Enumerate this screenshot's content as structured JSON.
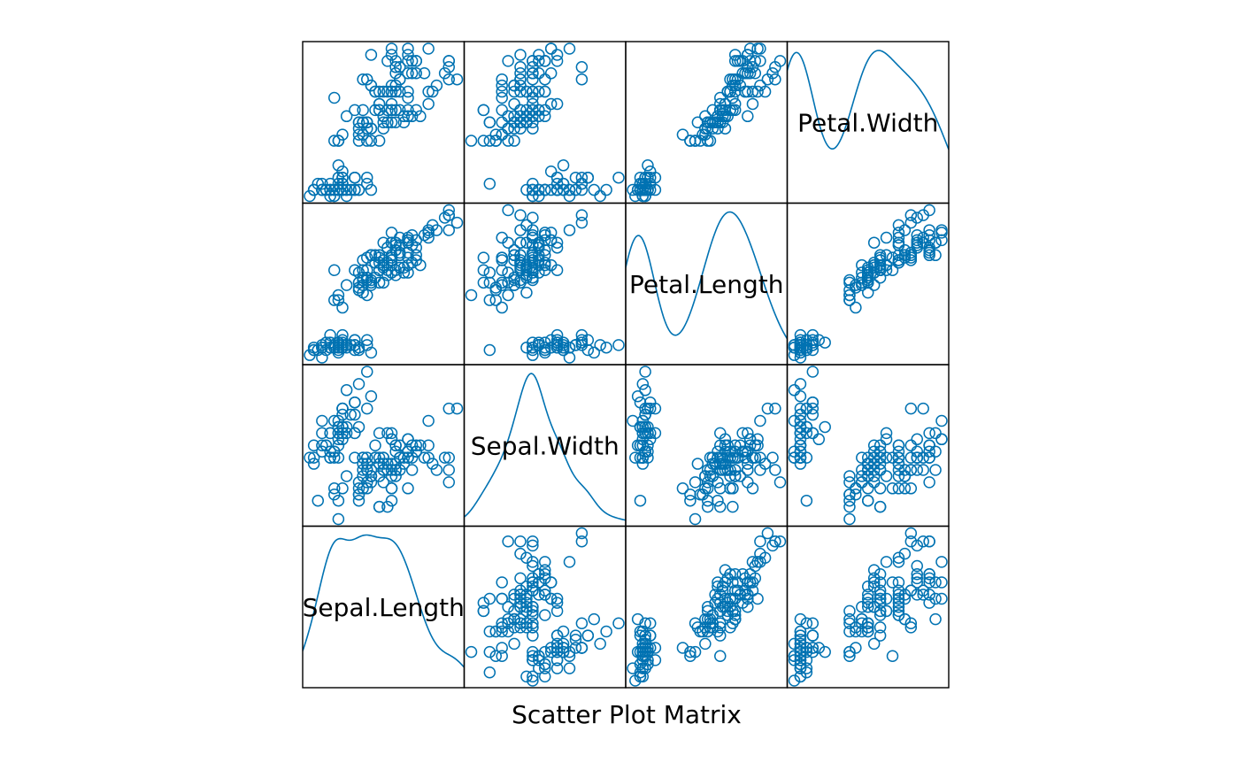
{
  "chart_data": {
    "type": "scatter",
    "subtype": "scatter-plot-matrix",
    "title": "Scatter Plot Matrix",
    "variables": [
      "Sepal.Length",
      "Sepal.Width",
      "Petal.Length",
      "Petal.Width"
    ],
    "diagonal": "density",
    "grid": false,
    "axes_shown": false,
    "point_shape": "open circle",
    "color": "#0072B2",
    "ranges": {
      "Sepal.Length": [
        4.3,
        7.9
      ],
      "Sepal.Width": [
        2.0,
        4.4
      ],
      "Petal.Length": [
        1.0,
        6.9
      ],
      "Petal.Width": [
        0.1,
        2.5
      ]
    },
    "density_ranges": {
      "Sepal.Length": [
        4.3,
        7.9
      ],
      "Sepal.Width": [
        2.0,
        4.4
      ],
      "Petal.Length": [
        1.0,
        6.9
      ],
      "Petal.Width": [
        0.1,
        2.5
      ]
    },
    "observations": [
      [
        5.1,
        3.5,
        1.4,
        0.2
      ],
      [
        4.9,
        3.0,
        1.4,
        0.2
      ],
      [
        4.7,
        3.2,
        1.3,
        0.2
      ],
      [
        4.6,
        3.1,
        1.5,
        0.2
      ],
      [
        5.0,
        3.6,
        1.4,
        0.2
      ],
      [
        5.4,
        3.9,
        1.7,
        0.4
      ],
      [
        4.6,
        3.4,
        1.4,
        0.3
      ],
      [
        5.0,
        3.4,
        1.5,
        0.2
      ],
      [
        4.4,
        2.9,
        1.4,
        0.2
      ],
      [
        4.9,
        3.1,
        1.5,
        0.1
      ],
      [
        5.4,
        3.7,
        1.5,
        0.2
      ],
      [
        4.8,
        3.4,
        1.6,
        0.2
      ],
      [
        4.8,
        3.0,
        1.4,
        0.1
      ],
      [
        4.3,
        3.0,
        1.1,
        0.1
      ],
      [
        5.8,
        4.0,
        1.2,
        0.2
      ],
      [
        5.7,
        4.4,
        1.5,
        0.4
      ],
      [
        5.4,
        3.9,
        1.3,
        0.4
      ],
      [
        5.1,
        3.5,
        1.4,
        0.3
      ],
      [
        5.7,
        3.8,
        1.7,
        0.3
      ],
      [
        5.1,
        3.8,
        1.5,
        0.3
      ],
      [
        5.4,
        3.4,
        1.7,
        0.2
      ],
      [
        5.1,
        3.7,
        1.5,
        0.4
      ],
      [
        4.6,
        3.6,
        1.0,
        0.2
      ],
      [
        5.1,
        3.3,
        1.7,
        0.5
      ],
      [
        4.8,
        3.4,
        1.9,
        0.2
      ],
      [
        5.0,
        3.0,
        1.6,
        0.2
      ],
      [
        5.0,
        3.4,
        1.6,
        0.4
      ],
      [
        5.2,
        3.5,
        1.5,
        0.2
      ],
      [
        5.2,
        3.4,
        1.4,
        0.2
      ],
      [
        4.7,
        3.2,
        1.6,
        0.2
      ],
      [
        4.8,
        3.1,
        1.6,
        0.2
      ],
      [
        5.4,
        3.4,
        1.5,
        0.4
      ],
      [
        5.2,
        4.1,
        1.5,
        0.1
      ],
      [
        5.5,
        4.2,
        1.4,
        0.2
      ],
      [
        4.9,
        3.1,
        1.5,
        0.2
      ],
      [
        5.0,
        3.2,
        1.2,
        0.2
      ],
      [
        5.5,
        3.5,
        1.3,
        0.2
      ],
      [
        4.9,
        3.6,
        1.4,
        0.1
      ],
      [
        4.4,
        3.0,
        1.3,
        0.2
      ],
      [
        5.1,
        3.4,
        1.5,
        0.2
      ],
      [
        5.0,
        3.5,
        1.3,
        0.3
      ],
      [
        4.5,
        2.3,
        1.3,
        0.3
      ],
      [
        4.4,
        3.2,
        1.3,
        0.2
      ],
      [
        5.0,
        3.5,
        1.6,
        0.6
      ],
      [
        5.1,
        3.8,
        1.9,
        0.4
      ],
      [
        4.8,
        3.0,
        1.4,
        0.3
      ],
      [
        5.1,
        3.8,
        1.6,
        0.2
      ],
      [
        4.6,
        3.2,
        1.4,
        0.2
      ],
      [
        5.3,
        3.7,
        1.5,
        0.2
      ],
      [
        5.0,
        3.3,
        1.4,
        0.2
      ],
      [
        7.0,
        3.2,
        4.7,
        1.4
      ],
      [
        6.4,
        3.2,
        4.5,
        1.5
      ],
      [
        6.9,
        3.1,
        4.9,
        1.5
      ],
      [
        5.5,
        2.3,
        4.0,
        1.3
      ],
      [
        6.5,
        2.8,
        4.6,
        1.5
      ],
      [
        5.7,
        2.8,
        4.5,
        1.3
      ],
      [
        6.3,
        3.3,
        4.7,
        1.6
      ],
      [
        4.9,
        2.4,
        3.3,
        1.0
      ],
      [
        6.6,
        2.9,
        4.6,
        1.3
      ],
      [
        5.2,
        2.7,
        3.9,
        1.4
      ],
      [
        5.0,
        2.0,
        3.5,
        1.0
      ],
      [
        5.9,
        3.0,
        4.2,
        1.5
      ],
      [
        6.0,
        2.2,
        4.0,
        1.0
      ],
      [
        6.1,
        2.9,
        4.7,
        1.4
      ],
      [
        5.6,
        2.9,
        3.6,
        1.3
      ],
      [
        6.7,
        3.1,
        4.4,
        1.4
      ],
      [
        5.6,
        3.0,
        4.5,
        1.5
      ],
      [
        5.8,
        2.7,
        4.1,
        1.0
      ],
      [
        6.2,
        2.2,
        4.5,
        1.5
      ],
      [
        5.6,
        2.5,
        3.9,
        1.1
      ],
      [
        5.9,
        3.2,
        4.8,
        1.8
      ],
      [
        6.1,
        2.8,
        4.0,
        1.3
      ],
      [
        6.3,
        2.5,
        4.9,
        1.5
      ],
      [
        6.1,
        2.8,
        4.7,
        1.2
      ],
      [
        6.4,
        2.9,
        4.3,
        1.3
      ],
      [
        6.6,
        3.0,
        4.4,
        1.4
      ],
      [
        6.8,
        2.8,
        4.8,
        1.4
      ],
      [
        6.7,
        3.0,
        5.0,
        1.7
      ],
      [
        6.0,
        2.9,
        4.5,
        1.5
      ],
      [
        5.7,
        2.6,
        3.5,
        1.0
      ],
      [
        5.5,
        2.4,
        3.8,
        1.1
      ],
      [
        5.5,
        2.4,
        3.7,
        1.0
      ],
      [
        5.8,
        2.7,
        3.9,
        1.2
      ],
      [
        6.0,
        2.7,
        5.1,
        1.6
      ],
      [
        5.4,
        3.0,
        4.5,
        1.5
      ],
      [
        6.0,
        3.4,
        4.5,
        1.6
      ],
      [
        6.7,
        3.1,
        4.7,
        1.5
      ],
      [
        6.3,
        2.3,
        4.4,
        1.3
      ],
      [
        5.6,
        3.0,
        4.1,
        1.3
      ],
      [
        5.5,
        2.5,
        4.0,
        1.3
      ],
      [
        5.5,
        2.6,
        4.4,
        1.2
      ],
      [
        6.1,
        3.0,
        4.6,
        1.4
      ],
      [
        5.8,
        2.6,
        4.0,
        1.2
      ],
      [
        5.0,
        2.3,
        3.3,
        1.0
      ],
      [
        5.6,
        2.7,
        4.2,
        1.3
      ],
      [
        5.7,
        3.0,
        4.2,
        1.2
      ],
      [
        5.7,
        2.9,
        4.2,
        1.3
      ],
      [
        6.2,
        2.9,
        4.3,
        1.3
      ],
      [
        5.1,
        2.5,
        3.0,
        1.1
      ],
      [
        5.7,
        2.8,
        4.1,
        1.3
      ],
      [
        6.3,
        3.3,
        6.0,
        2.5
      ],
      [
        5.8,
        2.7,
        5.1,
        1.9
      ],
      [
        7.1,
        3.0,
        5.9,
        2.1
      ],
      [
        6.3,
        2.9,
        5.6,
        1.8
      ],
      [
        6.5,
        3.0,
        5.8,
        2.2
      ],
      [
        7.6,
        3.0,
        6.6,
        2.1
      ],
      [
        4.9,
        2.5,
        4.5,
        1.7
      ],
      [
        7.3,
        2.9,
        6.3,
        1.8
      ],
      [
        6.7,
        2.5,
        5.8,
        1.8
      ],
      [
        7.2,
        3.6,
        6.1,
        2.5
      ],
      [
        6.5,
        3.2,
        5.1,
        2.0
      ],
      [
        6.4,
        2.7,
        5.3,
        1.9
      ],
      [
        6.8,
        3.0,
        5.5,
        2.1
      ],
      [
        5.7,
        2.5,
        5.0,
        2.0
      ],
      [
        5.8,
        2.8,
        5.1,
        2.4
      ],
      [
        6.4,
        3.2,
        5.3,
        2.3
      ],
      [
        6.5,
        3.0,
        5.5,
        1.8
      ],
      [
        7.7,
        3.8,
        6.7,
        2.2
      ],
      [
        7.7,
        2.6,
        6.9,
        2.3
      ],
      [
        6.0,
        2.2,
        5.0,
        1.5
      ],
      [
        6.9,
        3.2,
        5.7,
        2.3
      ],
      [
        5.6,
        2.8,
        4.9,
        2.0
      ],
      [
        7.7,
        2.8,
        6.7,
        2.0
      ],
      [
        6.3,
        2.7,
        4.9,
        1.8
      ],
      [
        6.7,
        3.3,
        5.7,
        2.1
      ],
      [
        7.2,
        3.2,
        6.0,
        1.8
      ],
      [
        6.2,
        2.8,
        4.8,
        1.8
      ],
      [
        6.1,
        3.0,
        4.9,
        1.8
      ],
      [
        6.4,
        2.8,
        5.6,
        2.1
      ],
      [
        7.2,
        3.0,
        5.8,
        1.6
      ],
      [
        7.4,
        2.8,
        6.1,
        1.9
      ],
      [
        7.9,
        3.8,
        6.4,
        2.0
      ],
      [
        6.4,
        2.8,
        5.6,
        2.2
      ],
      [
        6.3,
        2.8,
        5.1,
        1.5
      ],
      [
        6.1,
        2.6,
        5.6,
        1.4
      ],
      [
        7.7,
        3.0,
        6.1,
        2.3
      ],
      [
        6.3,
        3.4,
        5.6,
        2.4
      ],
      [
        6.4,
        3.1,
        5.5,
        1.8
      ],
      [
        6.0,
        3.0,
        4.8,
        1.8
      ],
      [
        6.9,
        3.1,
        5.4,
        2.1
      ],
      [
        6.7,
        3.1,
        5.6,
        2.4
      ],
      [
        6.9,
        3.1,
        5.1,
        2.3
      ],
      [
        5.8,
        2.7,
        5.1,
        1.9
      ],
      [
        6.8,
        3.2,
        5.9,
        2.3
      ],
      [
        6.7,
        3.3,
        5.7,
        2.5
      ],
      [
        6.7,
        3.0,
        5.2,
        2.3
      ],
      [
        6.3,
        2.5,
        5.0,
        1.9
      ],
      [
        6.5,
        3.0,
        5.2,
        2.0
      ],
      [
        6.2,
        3.4,
        5.4,
        2.3
      ],
      [
        5.9,
        3.0,
        5.1,
        1.8
      ]
    ]
  }
}
